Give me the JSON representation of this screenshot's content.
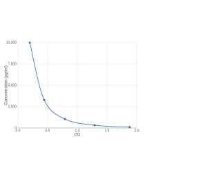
{
  "chart_data": {
    "type": "scatter",
    "x_label": "OD",
    "y_label": "Concentration (pg/ml)",
    "series": [
      {
        "color": "#3469c4",
        "x": [
          0.2,
          0.44,
          0.79,
          1.29,
          1.88
        ],
        "values": [
          10000,
          3300,
          1050,
          320,
          100
        ]
      }
    ],
    "xlim": [
      0,
      2
    ],
    "xticks": [
      {
        "value": 0,
        "label": "0.0"
      },
      {
        "value": 0.5,
        "label": "0.5"
      },
      {
        "value": 1,
        "label": "1.0"
      },
      {
        "value": 1.5,
        "label": "1.5"
      },
      {
        "value": 2,
        "label": "2.0"
      }
    ],
    "ylim": [
      0,
      10000
    ],
    "yticks": [
      0,
      {
        "value": 2500,
        "label": "2,500"
      },
      {
        "value": 5000,
        "label": "5,000"
      },
      {
        "value": 7500,
        "label": "7,500"
      },
      {
        "value": 10000,
        "label": "10,000"
      }
    ],
    "grid": true,
    "smooth": true
  }
}
